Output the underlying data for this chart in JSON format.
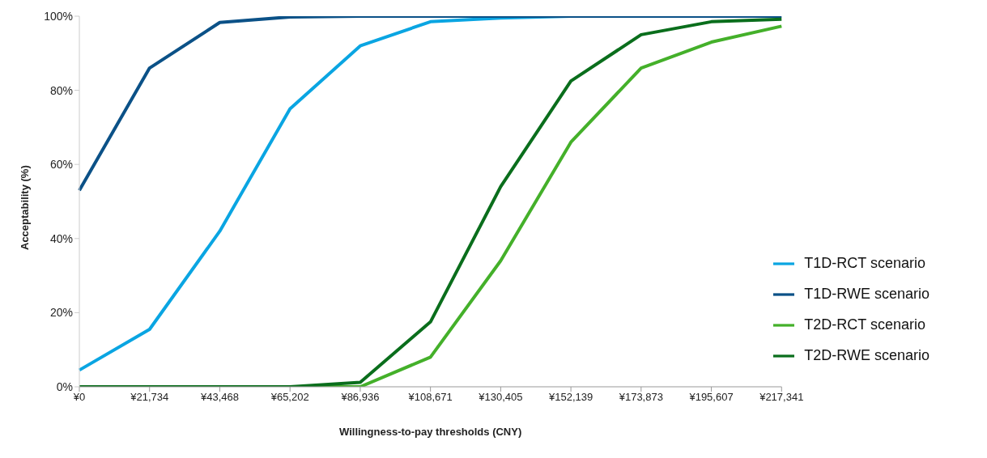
{
  "chart_data": {
    "type": "line",
    "xlabel": "Willingness-to-pay thresholds (CNY)",
    "ylabel": "Acceptability (%)",
    "categories": [
      "¥0",
      "¥21,734",
      "¥43,468",
      "¥65,202",
      "¥86,936",
      "¥108,671",
      "¥130,405",
      "¥152,139",
      "¥173,873",
      "¥195,607",
      "¥217,341"
    ],
    "ylim": [
      0,
      100
    ],
    "yticks": [
      {
        "value": 0,
        "label": "0%"
      },
      {
        "value": 20,
        "label": "20%"
      },
      {
        "value": 40,
        "label": "40%"
      },
      {
        "value": 60,
        "label": "60%"
      },
      {
        "value": 80,
        "label": "80%"
      },
      {
        "value": 100,
        "label": "100%"
      }
    ],
    "grid": false,
    "legend": "bottom right",
    "marker": "none",
    "line_style": "solid",
    "series": [
      {
        "name": "T1D-RCT scenario",
        "color": "#0aa5e2",
        "values": [
          4.5,
          15.5,
          42,
          75,
          92,
          98.5,
          99.5,
          100,
          100,
          null,
          null
        ]
      },
      {
        "name": "T1D-RWE scenario",
        "color": "#0b5187",
        "values": [
          53,
          86,
          98.3,
          99.8,
          100,
          100,
          100,
          100,
          100,
          100,
          100
        ]
      },
      {
        "name": "T2D-RCT scenario",
        "color": "#44b02a",
        "values": [
          null,
          null,
          0,
          0,
          0,
          8,
          34,
          66,
          86,
          93,
          97.3
        ]
      },
      {
        "name": "T2D-RWE scenario",
        "color": "#0a6e1c",
        "values": [
          0,
          0,
          0,
          0,
          1.2,
          17.5,
          54,
          82.5,
          95,
          98.5,
          99.2
        ]
      }
    ]
  }
}
